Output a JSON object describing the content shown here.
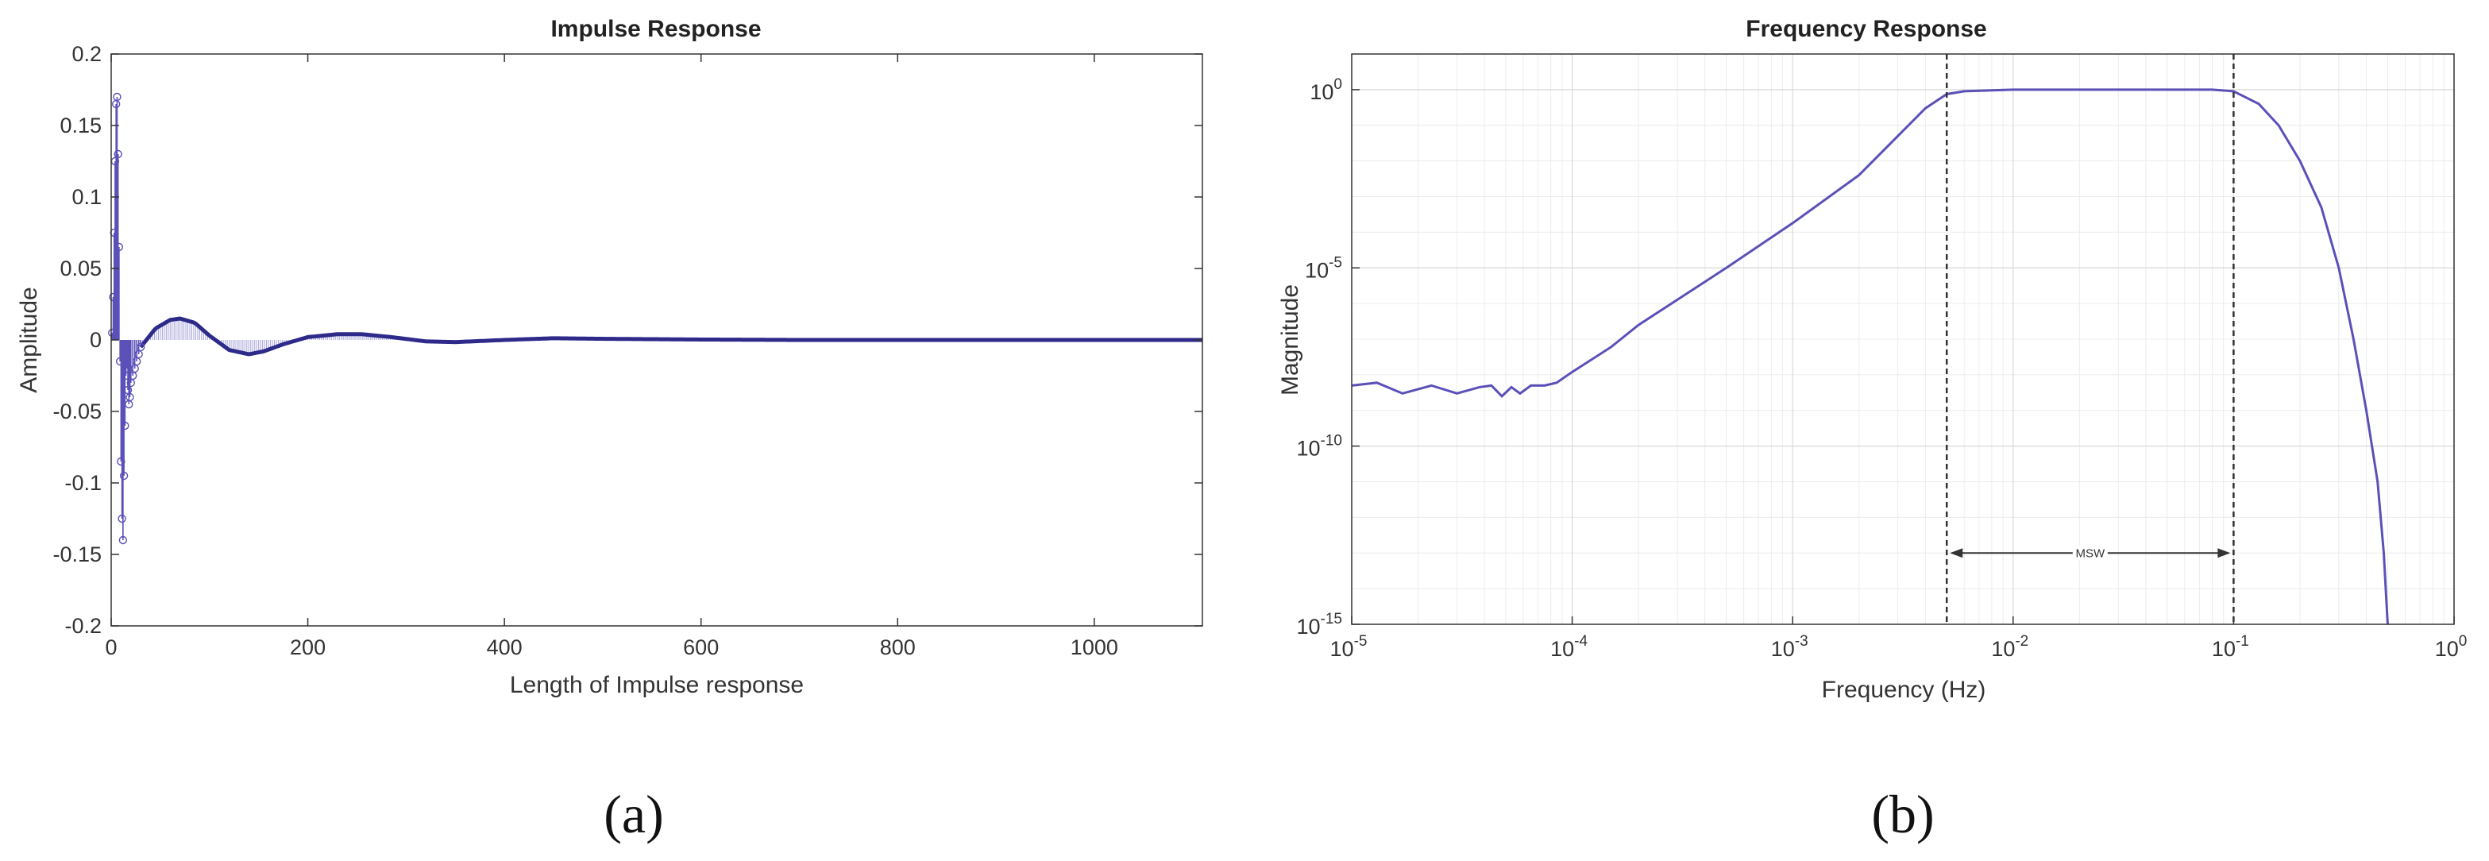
{
  "figure": {
    "panel_a_label": "(a)",
    "panel_b_label": "(b)"
  },
  "colors": {
    "series": "#5a50b8",
    "series_dark": "#2e2a8a",
    "axis": "#333333",
    "grid": "#d9d9d9",
    "grid_minor": "#ececec",
    "marker_line": "#333333"
  },
  "chart_data": [
    {
      "type": "stem",
      "title": "Impulse Response",
      "xlabel": "Length of Impulse response",
      "ylabel": "Amplitude",
      "xlim": [
        0,
        1110
      ],
      "ylim": [
        -0.2,
        0.2
      ],
      "xticks": [
        0,
        200,
        400,
        600,
        800,
        1000
      ],
      "xtick_labels": [
        "0",
        "200",
        "400",
        "600",
        "800",
        "1000"
      ],
      "yticks": [
        -0.2,
        -0.15,
        -0.1,
        -0.05,
        0,
        0.05,
        0.1,
        0.15,
        0.2
      ],
      "ytick_labels": [
        "-0.2",
        "-0.15",
        "-0.1",
        "-0.05",
        "0",
        "0.05",
        "0.1",
        "0.15",
        "0.2"
      ],
      "grid": false,
      "spikes": {
        "x": [
          1,
          2,
          3,
          4,
          5,
          6,
          7,
          8,
          9,
          10,
          11,
          12,
          13,
          14,
          15,
          16,
          17,
          18,
          19,
          20,
          22,
          24,
          26,
          28,
          30
        ],
        "y": [
          0.005,
          0.03,
          0.075,
          0.125,
          0.165,
          0.17,
          0.13,
          0.065,
          -0.015,
          -0.085,
          -0.125,
          -0.14,
          -0.095,
          -0.06,
          -0.025,
          -0.02,
          -0.035,
          -0.045,
          -0.04,
          -0.03,
          -0.025,
          -0.02,
          -0.015,
          -0.01,
          -0.005
        ]
      },
      "tail_envelope": {
        "x": [
          30,
          45,
          60,
          70,
          85,
          100,
          120,
          140,
          155,
          175,
          200,
          230,
          255,
          285,
          320,
          350,
          400,
          450,
          500,
          600,
          700,
          800,
          900,
          1000,
          1110
        ],
        "y": [
          -0.005,
          0.008,
          0.014,
          0.015,
          0.012,
          0.003,
          -0.007,
          -0.01,
          -0.008,
          -0.003,
          0.002,
          0.004,
          0.004,
          0.002,
          -0.001,
          -0.0015,
          0.0,
          0.0012,
          0.0008,
          0.0003,
          0.0,
          0.0,
          0.0,
          0.0,
          0.0
        ]
      }
    },
    {
      "type": "line",
      "title": "Frequency Response",
      "xlabel": "Frequency (Hz)",
      "ylabel": "Magnitude",
      "xscale": "log",
      "yscale": "log",
      "xlim": [
        1e-05,
        1
      ],
      "ylim": [
        1e-15,
        10
      ],
      "xtick_exponents": [
        -5,
        -4,
        -3,
        -2,
        -1,
        0
      ],
      "ytick_exponents": [
        -15,
        -10,
        -5,
        0
      ],
      "tick_base": "10",
      "grid": true,
      "series": [
        {
          "x": [
            1e-05,
            1.3e-05,
            1.7e-05,
            2.3e-05,
            3e-05,
            3.8e-05,
            4.3e-05,
            4.8e-05,
            5.3e-05,
            5.8e-05,
            6.5e-05,
            7.5e-05,
            8.5e-05,
            0.0001,
            0.00015,
            0.0002,
            0.0005,
            0.001,
            0.002,
            0.004,
            0.005,
            0.006,
            0.01,
            0.03,
            0.08,
            0.1,
            0.13,
            0.16,
            0.2,
            0.25,
            0.3,
            0.35,
            0.4,
            0.45,
            0.48,
            0.5
          ],
          "y": [
            5e-09,
            6e-09,
            3e-09,
            5e-09,
            3e-09,
            4.5e-09,
            5e-09,
            2.5e-09,
            4.5e-09,
            3e-09,
            5e-09,
            5e-09,
            6e-09,
            1.2e-08,
            6e-08,
            2.5e-07,
            1e-05,
            0.00018,
            0.004,
            0.3,
            0.75,
            0.9,
            1,
            1,
            1,
            0.9,
            0.4,
            0.1,
            0.01,
            0.0005,
            1e-05,
            1e-07,
            1e-09,
            1e-11,
            1e-13,
            1e-15
          ]
        }
      ],
      "vlines": [
        0.005,
        0.1
      ],
      "annotation": {
        "text": "MSW",
        "x_from": 0.005,
        "x_to": 0.1,
        "y": 1e-13
      }
    }
  ]
}
